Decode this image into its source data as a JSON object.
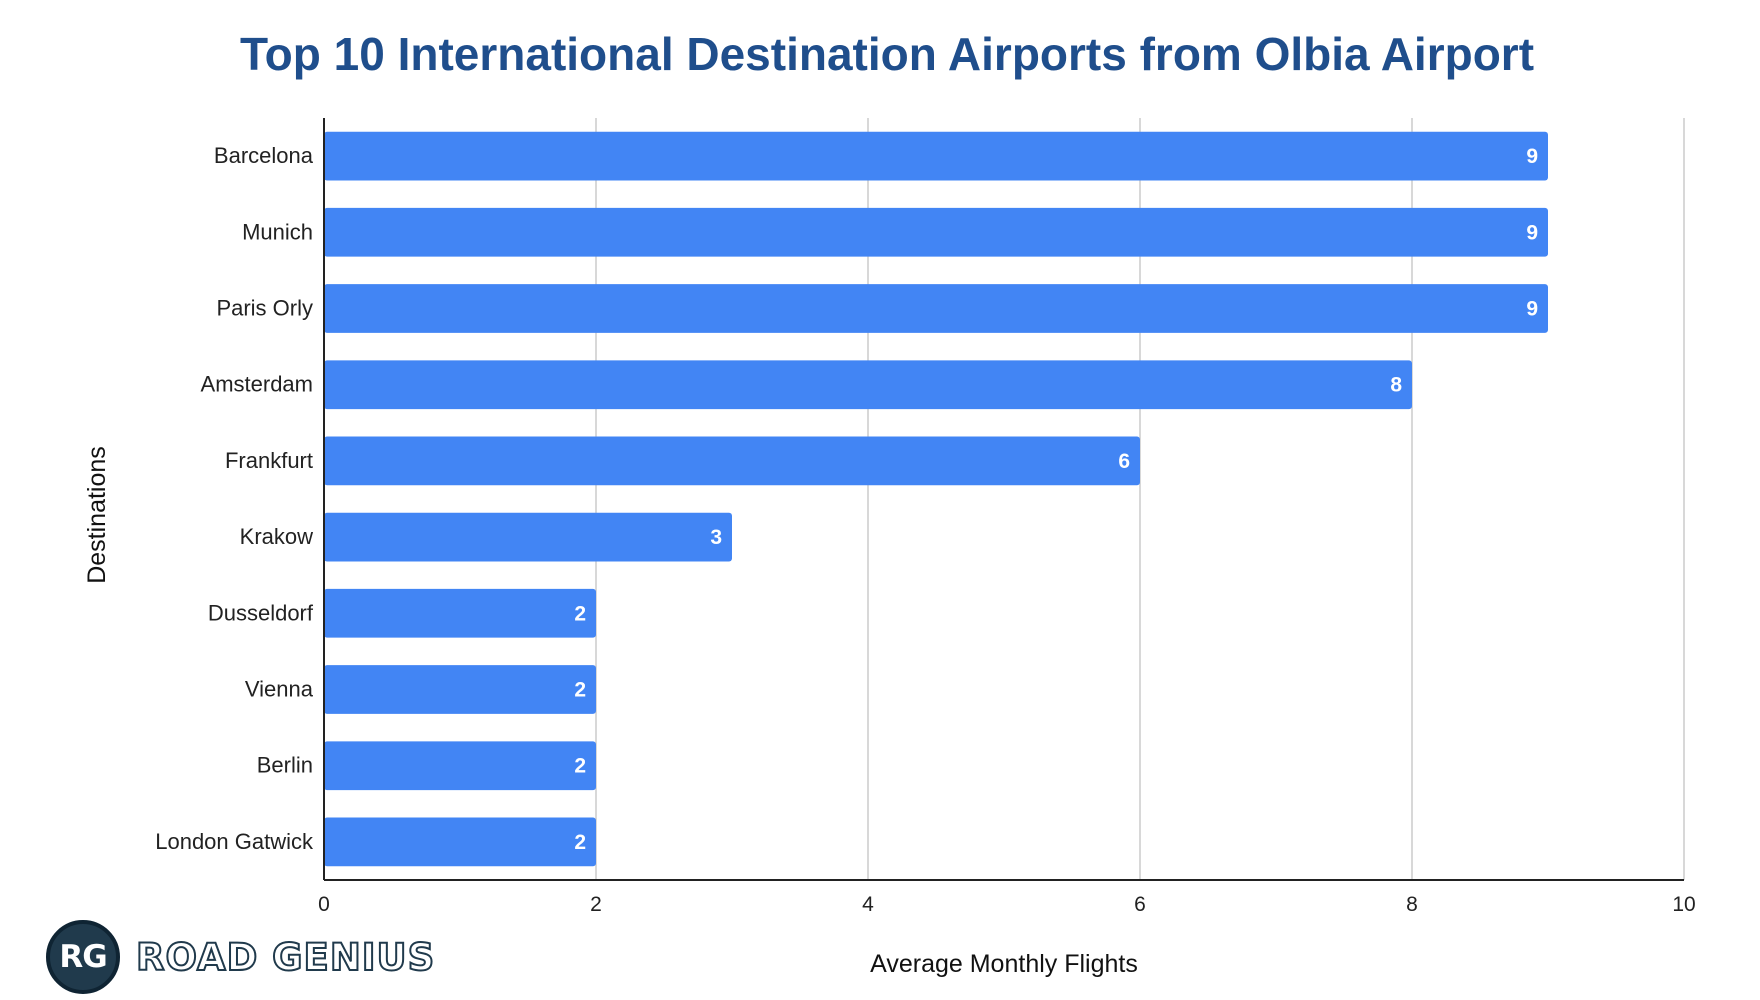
{
  "chart_data": {
    "type": "bar",
    "orientation": "horizontal",
    "title": "Top 10 International Destination Airports from Olbia Airport",
    "xlabel": "Average Monthly Flights",
    "ylabel": "Destinations",
    "categories": [
      "Barcelona",
      "Munich",
      "Paris Orly",
      "Amsterdam",
      "Frankfurt",
      "Krakow",
      "Dusseldorf",
      "Vienna",
      "Berlin",
      "London Gatwick"
    ],
    "values": [
      9,
      9,
      9,
      8,
      6,
      3,
      2,
      2,
      2,
      2
    ],
    "xlim": [
      0,
      10
    ],
    "xticks": [
      0,
      2,
      4,
      6,
      8,
      10
    ],
    "grid": "vertical",
    "legend": "none",
    "bar_color": "#4285f4",
    "title_color": "#1f4e8c"
  },
  "logo": {
    "badge_text": "RG",
    "wordmark": "ROAD GENIUS"
  }
}
